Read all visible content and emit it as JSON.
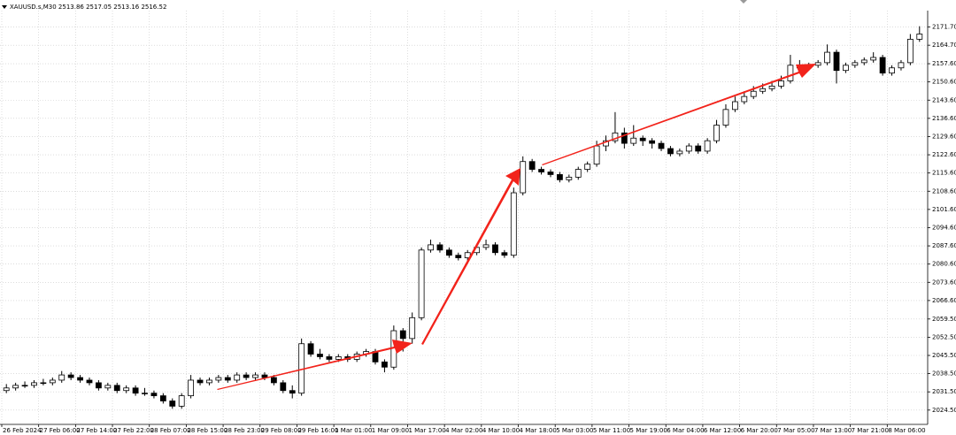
{
  "chart_data": {
    "type": "candlestick",
    "title": "XAUUSD.s,M30  2513.86 2517.05 2513.16 2516.52",
    "grid": true,
    "up_color": "#ffffff",
    "down_color": "#000000",
    "outline_color": "#000000",
    "ylim": [
      2019,
      2178
    ],
    "yticks": [
      {
        "value": 2024.5,
        "label": "2024.50"
      },
      {
        "value": 2031.5,
        "label": "2031.50"
      },
      {
        "value": 2038.5,
        "label": "2038.50"
      },
      {
        "value": 2045.5,
        "label": "2045.50"
      },
      {
        "value": 2052.5,
        "label": "2052.50"
      },
      {
        "value": 2059.5,
        "label": "2059.50"
      },
      {
        "value": 2066.6,
        "label": "2066.60"
      },
      {
        "value": 2073.6,
        "label": "2073.60"
      },
      {
        "value": 2080.6,
        "label": "2080.60"
      },
      {
        "value": 2087.6,
        "label": "2087.60"
      },
      {
        "value": 2094.6,
        "label": "2094.60"
      },
      {
        "value": 2101.6,
        "label": "2101.60"
      },
      {
        "value": 2108.6,
        "label": "2108.60"
      },
      {
        "value": 2115.6,
        "label": "2115.60"
      },
      {
        "value": 2122.6,
        "label": "2122.60"
      },
      {
        "value": 2129.6,
        "label": "2129.60"
      },
      {
        "value": 2136.6,
        "label": "2136.60"
      },
      {
        "value": 2143.6,
        "label": "2143.60"
      },
      {
        "value": 2150.6,
        "label": "2150.60"
      },
      {
        "value": 2157.6,
        "label": "2157.60"
      },
      {
        "value": 2164.7,
        "label": "2164.70"
      },
      {
        "value": 2171.7,
        "label": "2171.70"
      }
    ],
    "categories": [
      "26 Feb 2024",
      null,
      null,
      null,
      "27 Feb 06:00",
      null,
      null,
      null,
      "27 Feb 14:00",
      null,
      null,
      null,
      "27 Feb 22:00",
      null,
      null,
      null,
      "28 Feb 07:00",
      null,
      null,
      null,
      "28 Feb 15:00",
      null,
      null,
      null,
      "28 Feb 23:00",
      null,
      null,
      null,
      "29 Feb 08:00",
      null,
      null,
      null,
      "29 Feb 16:00",
      null,
      null,
      null,
      "1 Mar 01:00",
      null,
      null,
      null,
      "1 Mar 09:00",
      null,
      null,
      null,
      "1 Mar 17:00",
      null,
      null,
      null,
      "4 Mar 02:00",
      null,
      null,
      null,
      "4 Mar 10:00",
      null,
      null,
      null,
      "4 Mar 18:00",
      null,
      null,
      null,
      "5 Mar 03:00",
      null,
      null,
      null,
      "5 Mar 11:00",
      null,
      null,
      null,
      "5 Mar 19:00",
      null,
      null,
      null,
      "6 Mar 04:00",
      null,
      null,
      null,
      "6 Mar 12:00",
      null,
      null,
      null,
      "6 Mar 20:00",
      null,
      null,
      null,
      "7 Mar 05:00",
      null,
      null,
      null,
      "7 Mar 13:00",
      null,
      null,
      null,
      "7 Mar 21:00",
      null,
      null,
      null,
      "8 Mar 06:00",
      null,
      null,
      null
    ],
    "candles": [
      [
        2032,
        2034.5,
        2031,
        2033
      ],
      [
        2033,
        2035,
        2032,
        2034
      ],
      [
        2034,
        2035.5,
        2033,
        2034
      ],
      [
        2034,
        2036,
        2033,
        2035
      ],
      [
        2035,
        2036.5,
        2034,
        2035
      ],
      [
        2035,
        2037,
        2034,
        2036
      ],
      [
        2036,
        2039.5,
        2035,
        2038
      ],
      [
        2038,
        2039,
        2036,
        2037
      ],
      [
        2037,
        2038,
        2035,
        2036
      ],
      [
        2036,
        2037,
        2034,
        2035
      ],
      [
        2035,
        2036,
        2032,
        2033
      ],
      [
        2033,
        2035,
        2032,
        2034
      ],
      [
        2034,
        2035,
        2031,
        2032
      ],
      [
        2032,
        2034,
        2031,
        2033
      ],
      [
        2033,
        2034,
        2030,
        2031
      ],
      [
        2031,
        2033,
        2030,
        2031
      ],
      [
        2031,
        2032,
        2029,
        2030
      ],
      [
        2030,
        2031,
        2027,
        2028
      ],
      [
        2028,
        2029,
        2025,
        2026
      ],
      [
        2026,
        2031,
        2025,
        2030
      ],
      [
        2030,
        2038,
        2029,
        2036
      ],
      [
        2036,
        2037,
        2034,
        2035
      ],
      [
        2035,
        2037,
        2034,
        2036
      ],
      [
        2036,
        2038,
        2035,
        2037
      ],
      [
        2037,
        2038,
        2035,
        2036
      ],
      [
        2036,
        2039,
        2035,
        2038
      ],
      [
        2038,
        2039,
        2036,
        2037
      ],
      [
        2037,
        2039,
        2036,
        2038
      ],
      [
        2038,
        2039,
        2036,
        2037
      ],
      [
        2037,
        2038,
        2034,
        2035
      ],
      [
        2035,
        2036,
        2031,
        2032
      ],
      [
        2032,
        2034,
        2029,
        2031
      ],
      [
        2031,
        2052,
        2030,
        2050
      ],
      [
        2050,
        2051,
        2045,
        2046
      ],
      [
        2046,
        2048,
        2044,
        2045
      ],
      [
        2045,
        2046,
        2043,
        2044
      ],
      [
        2044,
        2046,
        2043,
        2045
      ],
      [
        2045,
        2046,
        2043,
        2044
      ],
      [
        2044,
        2047,
        2043,
        2046
      ],
      [
        2046,
        2048,
        2045,
        2047
      ],
      [
        2047,
        2048,
        2042,
        2043
      ],
      [
        2043,
        2044,
        2039,
        2041
      ],
      [
        2041,
        2057,
        2040,
        2055
      ],
      [
        2055,
        2056,
        2047,
        2052
      ],
      [
        2052,
        2062,
        2050,
        2060
      ],
      [
        2060,
        2087,
        2059,
        2086
      ],
      [
        2086,
        2090,
        2085,
        2088
      ],
      [
        2088,
        2089,
        2085,
        2086
      ],
      [
        2086,
        2087,
        2083,
        2084
      ],
      [
        2084,
        2085,
        2082,
        2083
      ],
      [
        2083,
        2086,
        2082,
        2085
      ],
      [
        2085,
        2088,
        2084,
        2087
      ],
      [
        2087,
        2090,
        2086,
        2088
      ],
      [
        2088,
        2089,
        2084,
        2085
      ],
      [
        2085,
        2086,
        2083,
        2084
      ],
      [
        2084,
        2110,
        2083,
        2108
      ],
      [
        2108,
        2122,
        2107,
        2120
      ],
      [
        2120,
        2121,
        2116,
        2117
      ],
      [
        2117,
        2118,
        2115,
        2116
      ],
      [
        2116,
        2117,
        2114,
        2115
      ],
      [
        2115,
        2116,
        2112,
        2113
      ],
      [
        2113,
        2115,
        2112,
        2114
      ],
      [
        2114,
        2118,
        2113,
        2117
      ],
      [
        2117,
        2120,
        2116,
        2119
      ],
      [
        2119,
        2128,
        2118,
        2126
      ],
      [
        2126,
        2130,
        2124,
        2128
      ],
      [
        2128,
        2139,
        2127,
        2131
      ],
      [
        2131,
        2133,
        2125,
        2127
      ],
      [
        2127,
        2134,
        2126,
        2129
      ],
      [
        2129,
        2130,
        2126,
        2128
      ],
      [
        2128,
        2129,
        2125,
        2127
      ],
      [
        2127,
        2128,
        2124,
        2125
      ],
      [
        2125,
        2126,
        2122,
        2123
      ],
      [
        2123,
        2125,
        2122,
        2124
      ],
      [
        2124,
        2127,
        2123,
        2126
      ],
      [
        2126,
        2127,
        2123,
        2124
      ],
      [
        2124,
        2129,
        2123,
        2128
      ],
      [
        2128,
        2136,
        2127,
        2134
      ],
      [
        2134,
        2142,
        2133,
        2140
      ],
      [
        2140,
        2145,
        2139,
        2143
      ],
      [
        2143,
        2147,
        2142,
        2145
      ],
      [
        2145,
        2149,
        2144,
        2147
      ],
      [
        2147,
        2150,
        2146,
        2148
      ],
      [
        2148,
        2151,
        2147,
        2149
      ],
      [
        2149,
        2153,
        2148,
        2151
      ],
      [
        2151,
        2161,
        2150,
        2157
      ],
      [
        2157,
        2159,
        2155,
        2156
      ],
      [
        2156,
        2158,
        2155,
        2157
      ],
      [
        2157,
        2159,
        2156,
        2158
      ],
      [
        2158,
        2165,
        2157,
        2162
      ],
      [
        2162,
        2163,
        2150,
        2155
      ],
      [
        2155,
        2158,
        2154,
        2157
      ],
      [
        2157,
        2159,
        2156,
        2158
      ],
      [
        2158,
        2160,
        2157,
        2159
      ],
      [
        2159,
        2162,
        2158,
        2160
      ],
      [
        2160,
        2161,
        2153,
        2154
      ],
      [
        2154,
        2157,
        2153,
        2156
      ],
      [
        2156,
        2159,
        2155,
        2158
      ],
      [
        2158,
        2169,
        2157,
        2167
      ],
      [
        2167,
        2172,
        2166,
        2169
      ]
    ]
  }
}
